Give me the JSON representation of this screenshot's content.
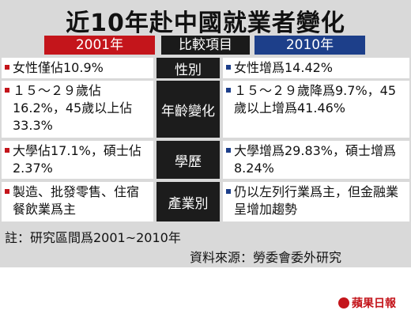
{
  "title": "近10年赴中國就業者變化",
  "headers": {
    "left": "2001年",
    "middle": "比較項目",
    "right": "2010年"
  },
  "rows": [
    {
      "category": "性別",
      "left": "女性僅佔10.9%",
      "right": "女性增爲14.42%"
    },
    {
      "category": "年齡變化",
      "left": "１５～２９歲佔16.2%，45歲以上佔33.3%",
      "right": "１５～２９歲降爲9.7%，45歲以上增爲41.46%"
    },
    {
      "category": "學歷",
      "left": "大學佔17.1%，碩士佔2.37%",
      "right": "大學增爲29.83%，碩士增爲8.24%"
    },
    {
      "category": "產業別",
      "left": "製造、批發零售、住宿餐飲業爲主",
      "right": "仍以左列行業爲主，但金融業呈增加趨勢"
    }
  ],
  "note": "註：研究區間爲2001~2010年",
  "source": "資料來源：勞委會委外研究",
  "logo": "蘋果日報",
  "colors": {
    "header_2001": "#c4151b",
    "header_2010": "#1d3f8a",
    "middle_column": "#1c1c1c",
    "panel_background": "#d9d9d9"
  }
}
